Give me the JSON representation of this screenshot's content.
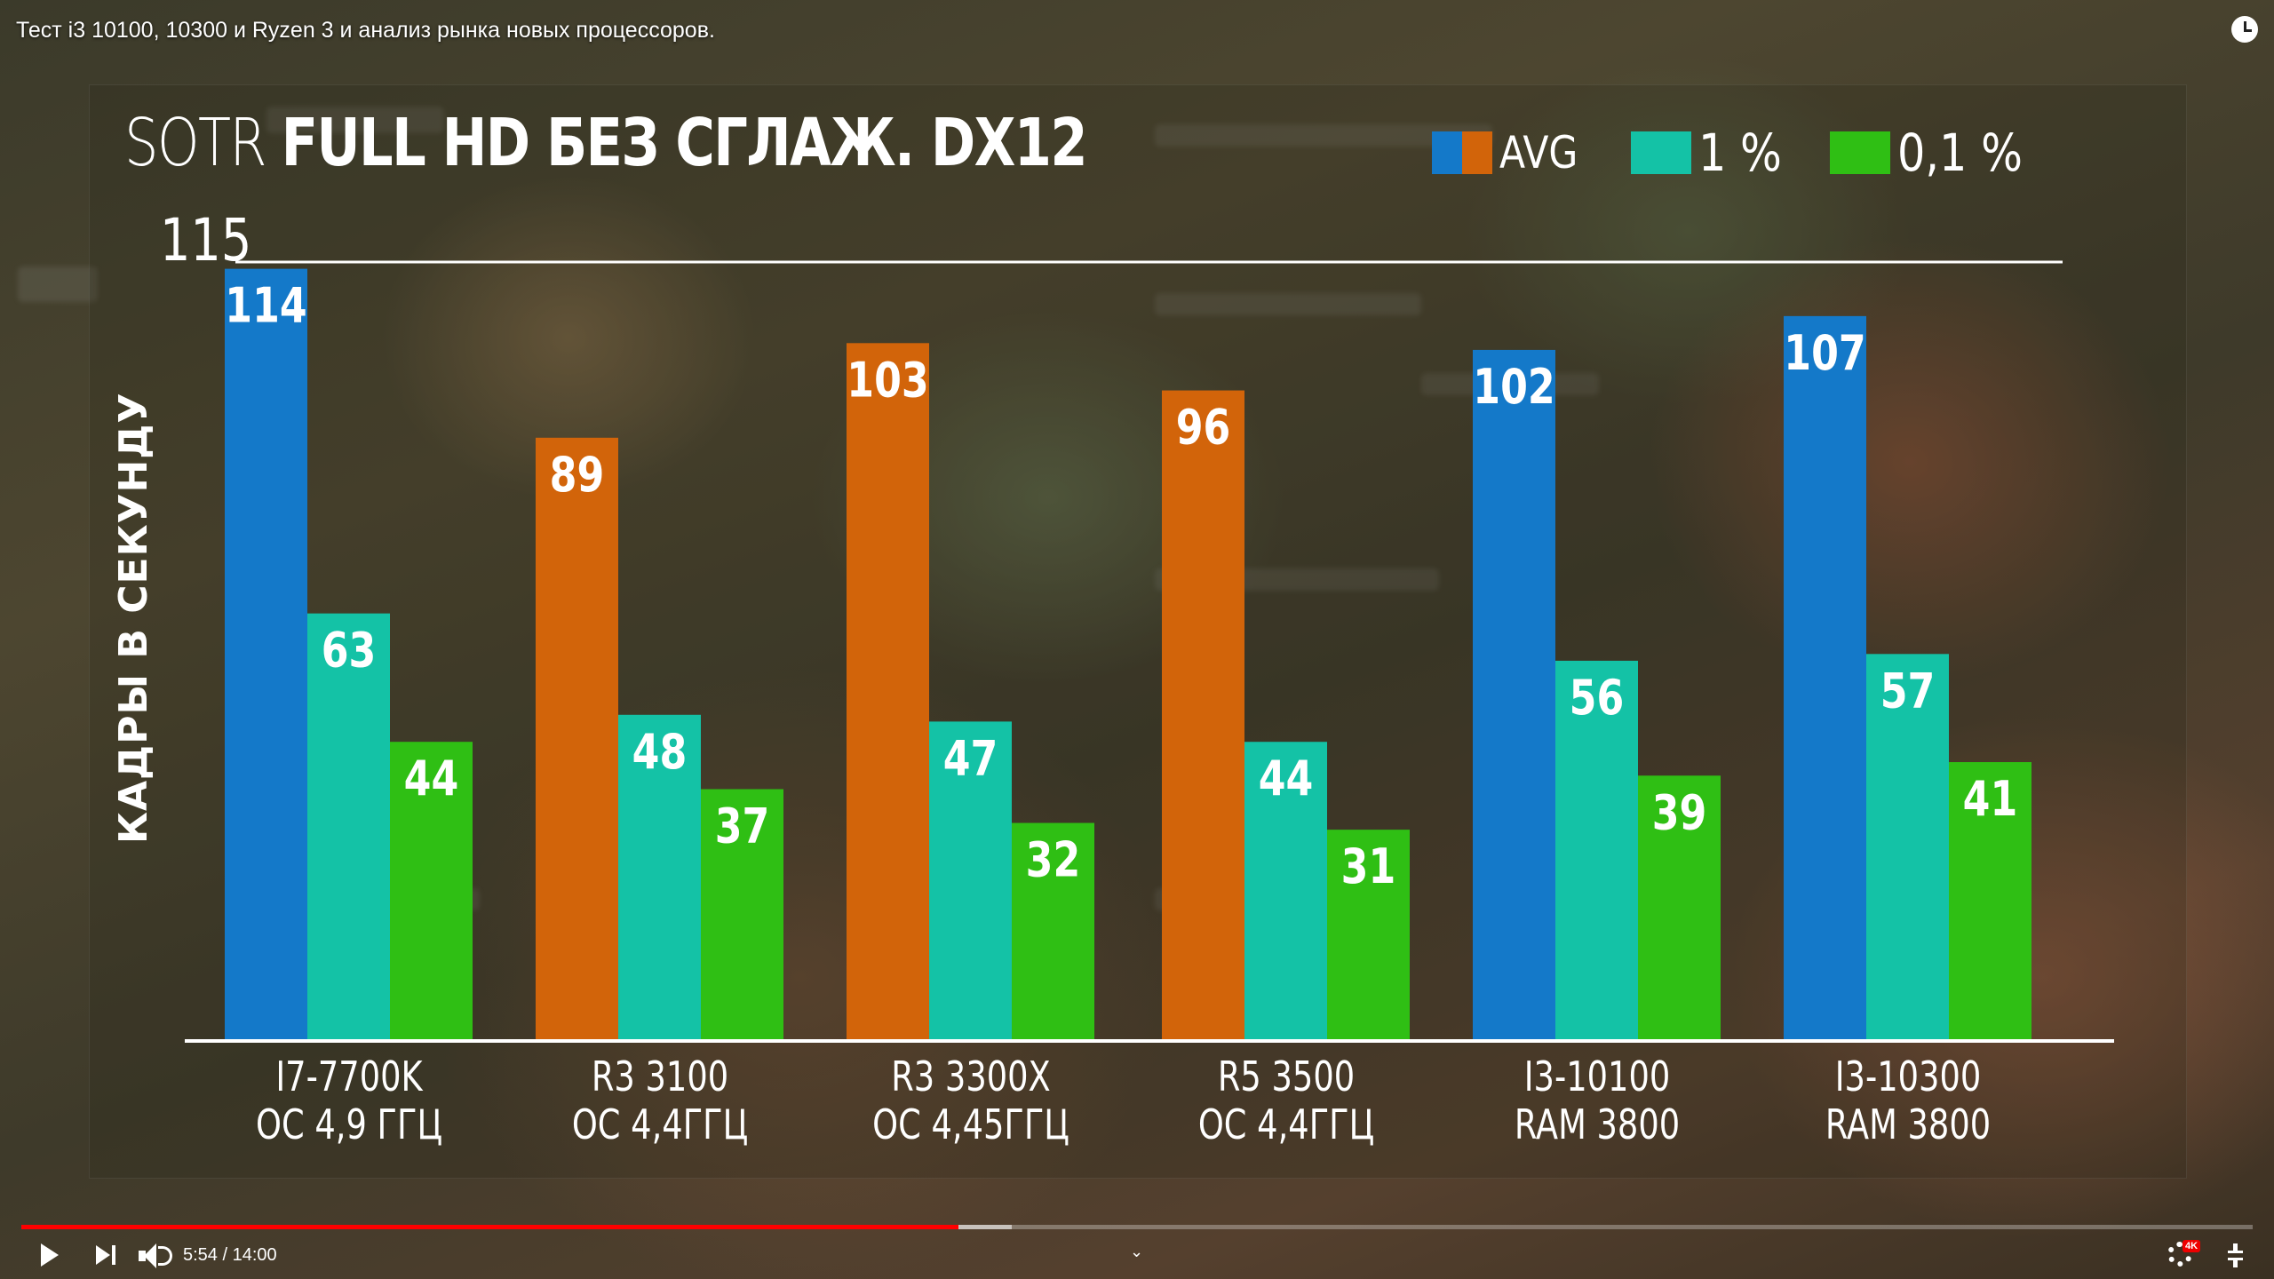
{
  "video": {
    "title": "Тест i3 10100, 10300 и Ryzen 3 и анализ рынка новых процессоров.",
    "time_current": "5:54",
    "time_total": "14:00",
    "progress_fraction": 0.42,
    "buffered_fraction": 0.444,
    "quality_badge": "4K"
  },
  "chart_title_light": "SOTR",
  "chart_title_bold": "FULL HD БЕЗ СГЛАЖ. DX12",
  "colors": {
    "intel": "#1479c9",
    "amd": "#d2640a",
    "p1": "#14c2a6",
    "p01": "#2fbf14"
  },
  "legend": {
    "avg": "AVG",
    "p1": "1 %",
    "p01": "0,1 %"
  },
  "chart_data": {
    "type": "bar",
    "title": "SOTR FULL HD БЕЗ СГЛАЖ. DX12",
    "ylabel": "КАДРЫ В СЕКУНДУ",
    "ylim": [
      0,
      115
    ],
    "ymax_label": "115",
    "categories": [
      [
        "I7-7700K",
        "ОС 4,9 ГГЦ"
      ],
      [
        "R3 3100",
        "ОС 4,4ГГЦ"
      ],
      [
        "R3 3300X",
        "ОС 4,45ГГЦ"
      ],
      [
        "R5 3500",
        "ОС 4,4ГГЦ"
      ],
      [
        "I3-10100",
        "RAM 3800"
      ],
      [
        "I3-10300",
        "RAM 3800"
      ]
    ],
    "avg_vendor": [
      "intel",
      "amd",
      "amd",
      "amd",
      "intel",
      "intel"
    ],
    "series": [
      {
        "name": "AVG",
        "values": [
          114,
          89,
          103,
          96,
          102,
          107
        ]
      },
      {
        "name": "1 %",
        "values": [
          63,
          48,
          47,
          44,
          56,
          57
        ]
      },
      {
        "name": "0,1 %",
        "values": [
          44,
          37,
          32,
          31,
          39,
          41
        ]
      }
    ]
  }
}
